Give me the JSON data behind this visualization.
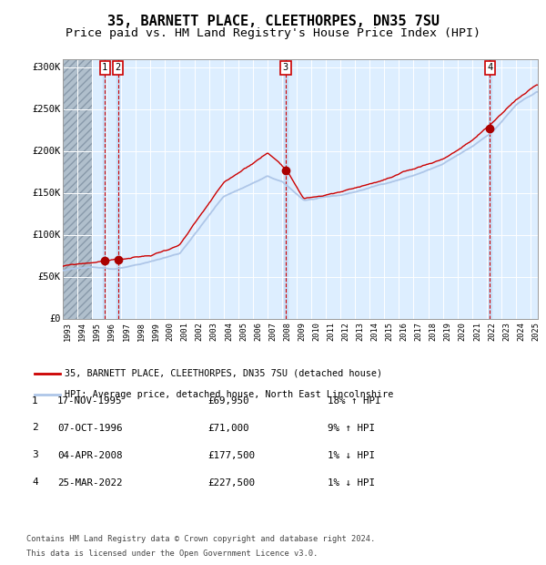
{
  "title": "35, BARNETT PLACE, CLEETHORPES, DN35 7SU",
  "subtitle": "Price paid vs. HM Land Registry's House Price Index (HPI)",
  "legend_line1": "35, BARNETT PLACE, CLEETHORPES, DN35 7SU (detached house)",
  "legend_line2": "HPI: Average price, detached house, North East Lincolnshire",
  "footer1": "Contains HM Land Registry data © Crown copyright and database right 2024.",
  "footer2": "This data is licensed under the Open Government Licence v3.0.",
  "transactions": [
    {
      "num": 1,
      "date": "17-NOV-1995",
      "price": 69950,
      "pct": "18%",
      "dir": "↑",
      "x_year": 1995.88
    },
    {
      "num": 2,
      "date": "07-OCT-1996",
      "price": 71000,
      "pct": "9%",
      "dir": "↑",
      "x_year": 1996.77
    },
    {
      "num": 3,
      "date": "04-APR-2008",
      "price": 177500,
      "pct": "1%",
      "dir": "↓",
      "x_year": 2008.25
    },
    {
      "num": 4,
      "date": "25-MAR-2022",
      "price": 227500,
      "pct": "1%",
      "dir": "↓",
      "x_year": 2022.23
    }
  ],
  "x_start": 1993.0,
  "x_end": 2025.5,
  "y_min": 0,
  "y_max": 310000,
  "yticks": [
    0,
    50000,
    100000,
    150000,
    200000,
    250000,
    300000
  ],
  "ytick_labels": [
    "£0",
    "£50K",
    "£100K",
    "£150K",
    "£200K",
    "£250K",
    "£300K"
  ],
  "xticks": [
    1993,
    1994,
    1995,
    1996,
    1997,
    1998,
    1999,
    2000,
    2001,
    2002,
    2003,
    2004,
    2005,
    2006,
    2007,
    2008,
    2009,
    2010,
    2011,
    2012,
    2013,
    2014,
    2015,
    2016,
    2017,
    2018,
    2019,
    2020,
    2021,
    2022,
    2023,
    2024,
    2025
  ],
  "hpi_color": "#aec6e8",
  "price_color": "#cc0000",
  "dot_color": "#aa0000",
  "dashed_color": "#cc0000",
  "bg_chart": "#ddeeff",
  "hatch_color": "#b0bfcc",
  "title_fontsize": 11,
  "subtitle_fontsize": 9.5
}
